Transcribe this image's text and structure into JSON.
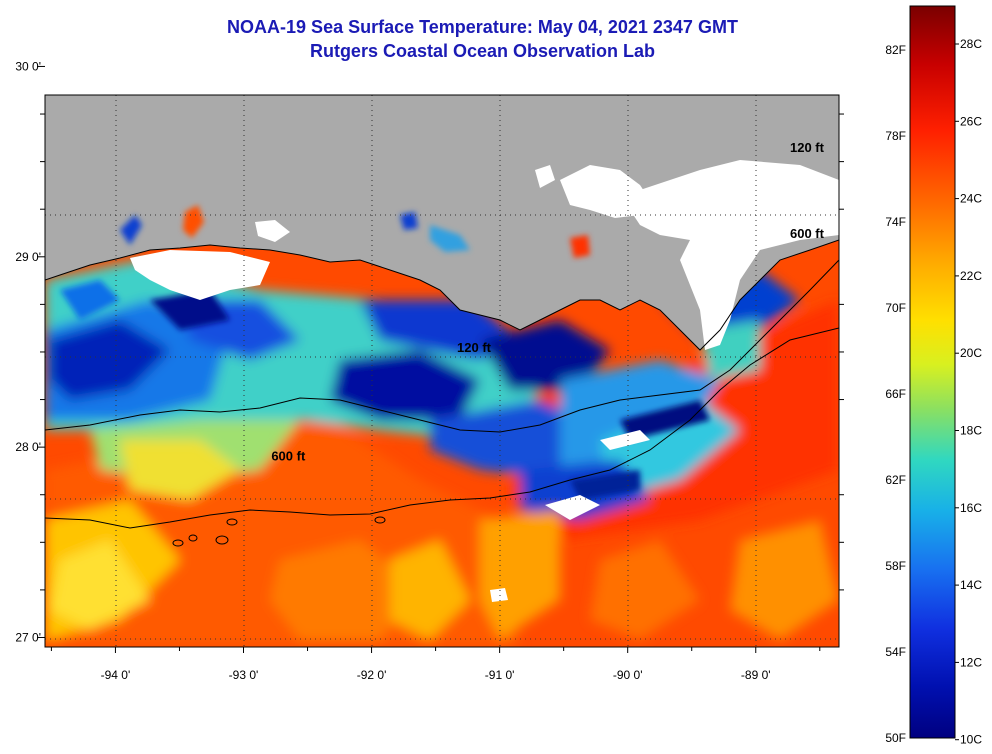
{
  "title": {
    "line1": "NOAA-19 Sea Surface Temperature:  May 04, 2021 2347 GMT",
    "line2": "Rutgers Coastal Ocean Observation Lab"
  },
  "map": {
    "lon_range": [
      -94.55,
      -88.35
    ],
    "lat_range": [
      26.95,
      29.85
    ],
    "lon_ticks": [
      {
        "value": -94,
        "label": "-94 0'"
      },
      {
        "value": -93,
        "label": "-93 0'"
      },
      {
        "value": -92,
        "label": "-92 0'"
      },
      {
        "value": -91,
        "label": "-91 0'"
      },
      {
        "value": -90,
        "label": "-90 0'"
      },
      {
        "value": -89,
        "label": "-89 0'"
      }
    ],
    "lat_ticks": [
      {
        "value": 27,
        "label": "27 0'"
      },
      {
        "value": 28,
        "label": "28 0'"
      },
      {
        "value": 29,
        "label": "29 0'"
      },
      {
        "value": 30,
        "label": "30 0'"
      }
    ],
    "contour_labels": [
      {
        "text": "120 ft",
        "lon": -91.2,
        "lat": 28.5
      },
      {
        "text": "600 ft",
        "lon": -92.65,
        "lat": 27.93
      },
      {
        "text": "600 ft",
        "lon": -88.6,
        "lat": 29.1
      },
      {
        "text": "120 ft",
        "lon": -88.6,
        "lat": 29.55
      }
    ],
    "colors": {
      "land": "#aaaaaa",
      "cloud": "#ffffff"
    }
  },
  "colorbar": {
    "fahrenheit_labels": [
      "82F",
      "78F",
      "74F",
      "70F",
      "66F",
      "62F",
      "58F",
      "54F",
      "50F"
    ],
    "celsius_labels": [
      "28C",
      "26C",
      "24C",
      "22C",
      "20C",
      "18C",
      "16C",
      "14C",
      "12C",
      "10C"
    ],
    "colors": [
      "#7a0000",
      "#c80000",
      "#ff2000",
      "#ff6a00",
      "#ffaa00",
      "#ffe000",
      "#d8f020",
      "#8ce060",
      "#30d8c0",
      "#18b0e8",
      "#1870f0",
      "#1030e0",
      "#0010b0",
      "#000080"
    ]
  }
}
